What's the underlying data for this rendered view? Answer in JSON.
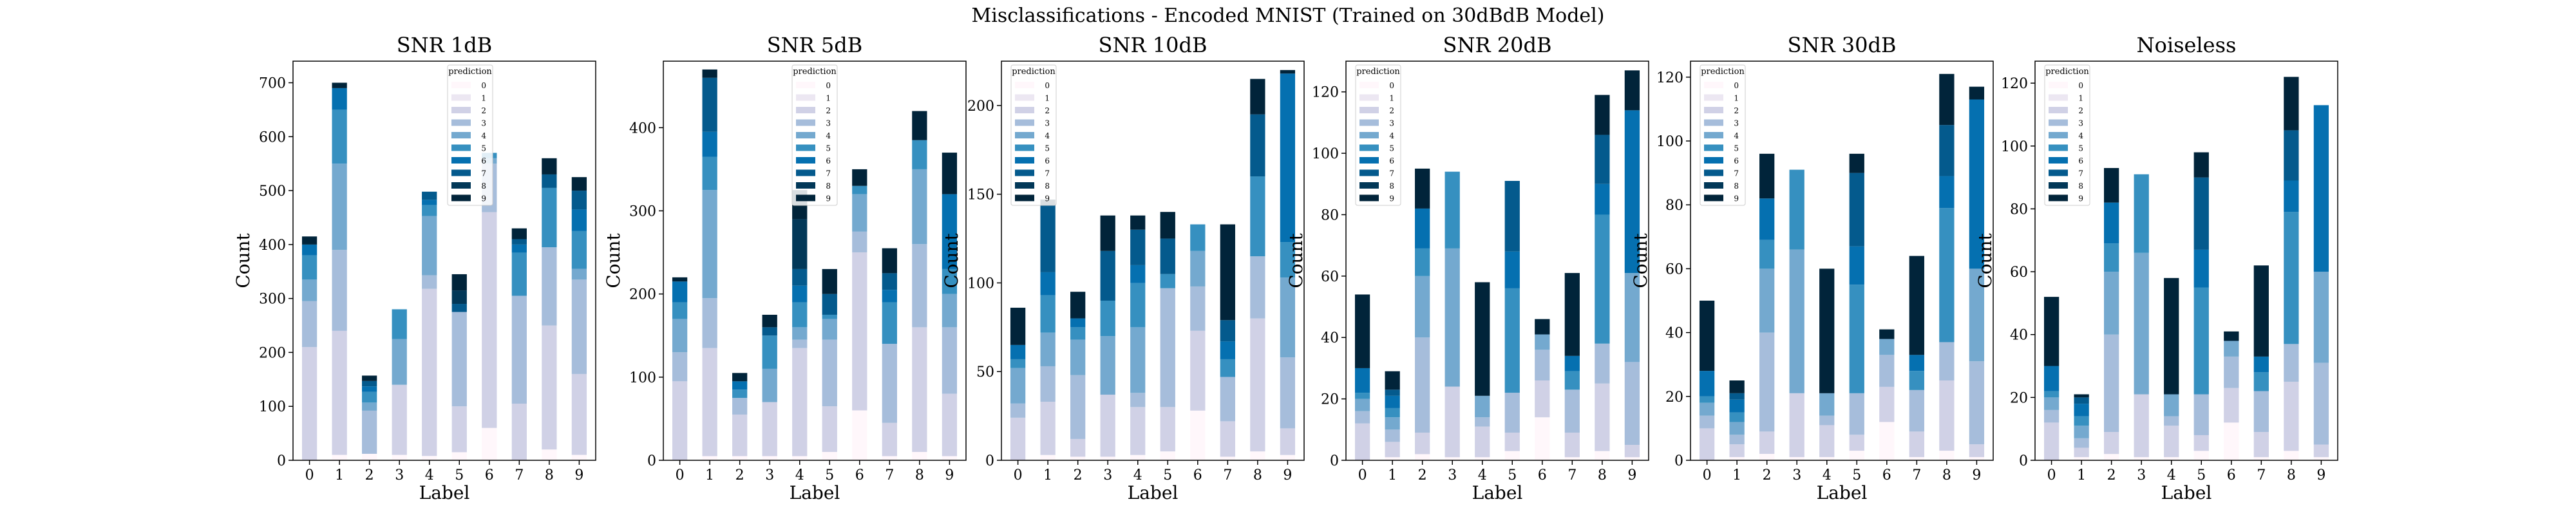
{
  "title": "Misclassifications - Encoded MNIST (Trained on 30dBdB Model)",
  "colors": [
    "#fff7fb",
    "#ece7f2",
    "#d0d1e6",
    "#a6bddb",
    "#74a9cf",
    "#3690c0",
    "#0570b0",
    "#045a8d",
    "#023858",
    "#01243a"
  ],
  "chart_data": [
    {
      "type": "bar",
      "stacked": true,
      "title": "SNR 1dB",
      "xlabel": "Label",
      "ylabel": "Count",
      "categories": [
        "0",
        "1",
        "2",
        "3",
        "4",
        "5",
        "6",
        "7",
        "8",
        "9"
      ],
      "ylim": [
        0,
        740
      ],
      "yticks": [
        0,
        100,
        200,
        300,
        400,
        500,
        600,
        700
      ],
      "legend": {
        "title": "prediction",
        "entries": [
          "0",
          "1",
          "2",
          "3",
          "4",
          "5",
          "6",
          "7",
          "8",
          "9"
        ],
        "position": "top-center"
      },
      "series": [
        {
          "name": "0",
          "values": [
            0,
            10,
            12,
            10,
            8,
            15,
            60,
            0,
            20,
            10
          ]
        },
        {
          "name": "1",
          "values": [
            0,
            0,
            0,
            0,
            0,
            0,
            0,
            0,
            0,
            0
          ]
        },
        {
          "name": "2",
          "values": [
            210,
            230,
            0,
            130,
            310,
            85,
            400,
            105,
            230,
            150
          ]
        },
        {
          "name": "3",
          "values": [
            85,
            150,
            80,
            0,
            25,
            175,
            90,
            200,
            145,
            175
          ]
        },
        {
          "name": "4",
          "values": [
            40,
            160,
            15,
            85,
            110,
            0,
            10,
            0,
            0,
            20
          ]
        },
        {
          "name": "5",
          "values": [
            45,
            100,
            20,
            55,
            20,
            0,
            10,
            80,
            110,
            70
          ]
        },
        {
          "name": "6",
          "values": [
            20,
            40,
            10,
            0,
            10,
            0,
            0,
            15,
            0,
            40
          ]
        },
        {
          "name": "7",
          "values": [
            0,
            0,
            10,
            0,
            15,
            15,
            0,
            10,
            25,
            35
          ]
        },
        {
          "name": "8",
          "values": [
            0,
            0,
            0,
            0,
            0,
            25,
            0,
            0,
            0,
            0
          ]
        },
        {
          "name": "9",
          "values": [
            15,
            10,
            10,
            0,
            0,
            30,
            0,
            20,
            30,
            25
          ]
        }
      ]
    },
    {
      "type": "bar",
      "stacked": true,
      "title": "SNR 5dB",
      "xlabel": "Label",
      "ylabel": "Count",
      "categories": [
        "0",
        "1",
        "2",
        "3",
        "4",
        "5",
        "6",
        "7",
        "8",
        "9"
      ],
      "ylim": [
        0,
        480
      ],
      "yticks": [
        0,
        100,
        200,
        300,
        400
      ],
      "legend": {
        "title": "prediction",
        "entries": [
          "0",
          "1",
          "2",
          "3",
          "4",
          "5",
          "6",
          "7",
          "8",
          "9"
        ],
        "position": "top-center"
      },
      "series": [
        {
          "name": "0",
          "values": [
            0,
            5,
            5,
            5,
            5,
            10,
            60,
            5,
            10,
            5
          ]
        },
        {
          "name": "1",
          "values": [
            0,
            0,
            0,
            0,
            0,
            0,
            0,
            0,
            0,
            0
          ]
        },
        {
          "name": "2",
          "values": [
            95,
            130,
            50,
            65,
            130,
            55,
            190,
            40,
            150,
            75
          ]
        },
        {
          "name": "3",
          "values": [
            35,
            60,
            20,
            0,
            10,
            80,
            25,
            95,
            100,
            80
          ]
        },
        {
          "name": "4",
          "values": [
            40,
            130,
            0,
            40,
            15,
            25,
            45,
            0,
            90,
            40
          ]
        },
        {
          "name": "5",
          "values": [
            20,
            40,
            10,
            40,
            30,
            5,
            10,
            50,
            35,
            30
          ]
        },
        {
          "name": "6",
          "values": [
            25,
            30,
            10,
            0,
            20,
            0,
            0,
            15,
            0,
            90
          ]
        },
        {
          "name": "7",
          "values": [
            0,
            65,
            0,
            10,
            20,
            25,
            0,
            20,
            0,
            0
          ]
        },
        {
          "name": "8",
          "values": [
            0,
            0,
            0,
            0,
            60,
            0,
            0,
            0,
            0,
            0
          ]
        },
        {
          "name": "9",
          "values": [
            5,
            10,
            10,
            15,
            35,
            30,
            20,
            30,
            35,
            50
          ]
        }
      ]
    },
    {
      "type": "bar",
      "stacked": true,
      "title": "SNR 10dB",
      "xlabel": "Label",
      "ylabel": "Count",
      "categories": [
        "0",
        "1",
        "2",
        "3",
        "4",
        "5",
        "6",
        "7",
        "8",
        "9"
      ],
      "ylim": [
        0,
        225
      ],
      "yticks": [
        0,
        50,
        100,
        150,
        200
      ],
      "legend": {
        "title": "prediction",
        "entries": [
          "0",
          "1",
          "2",
          "3",
          "4",
          "5",
          "6",
          "7",
          "8",
          "9"
        ],
        "position": "top-left"
      },
      "series": [
        {
          "name": "0",
          "values": [
            0,
            3,
            2,
            2,
            3,
            5,
            28,
            2,
            5,
            3
          ]
        },
        {
          "name": "1",
          "values": [
            0,
            0,
            0,
            0,
            0,
            0,
            0,
            0,
            0,
            0
          ]
        },
        {
          "name": "2",
          "values": [
            24,
            30,
            10,
            35,
            27,
            25,
            45,
            20,
            75,
            15
          ]
        },
        {
          "name": "3",
          "values": [
            8,
            20,
            36,
            0,
            8,
            67,
            25,
            25,
            35,
            40
          ]
        },
        {
          "name": "4",
          "values": [
            20,
            19,
            20,
            33,
            37,
            0,
            20,
            0,
            0,
            45
          ]
        },
        {
          "name": "5",
          "values": [
            5,
            21,
            7,
            20,
            25,
            8,
            15,
            10,
            45,
            20
          ]
        },
        {
          "name": "6",
          "values": [
            8,
            13,
            5,
            0,
            10,
            0,
            0,
            10,
            0,
            95
          ]
        },
        {
          "name": "7",
          "values": [
            0,
            38,
            0,
            28,
            20,
            20,
            0,
            12,
            35,
            0
          ]
        },
        {
          "name": "8",
          "values": [
            0,
            0,
            0,
            0,
            0,
            0,
            0,
            0,
            0,
            0
          ]
        },
        {
          "name": "9",
          "values": [
            21,
            3,
            15,
            20,
            8,
            15,
            0,
            54,
            20,
            2
          ]
        }
      ]
    },
    {
      "type": "bar",
      "stacked": true,
      "title": "SNR 20dB",
      "xlabel": "Label",
      "ylabel": "Count",
      "categories": [
        "0",
        "1",
        "2",
        "3",
        "4",
        "5",
        "6",
        "7",
        "8",
        "9"
      ],
      "ylim": [
        0,
        130
      ],
      "yticks": [
        0,
        20,
        40,
        60,
        80,
        100,
        120
      ],
      "legend": {
        "title": "prediction",
        "entries": [
          "0",
          "1",
          "2",
          "3",
          "4",
          "5",
          "6",
          "7",
          "8",
          "9"
        ],
        "position": "top-left"
      },
      "series": [
        {
          "name": "0",
          "values": [
            0,
            1,
            2,
            1,
            1,
            3,
            14,
            1,
            3,
            1
          ]
        },
        {
          "name": "1",
          "values": [
            0,
            0,
            0,
            0,
            0,
            0,
            0,
            0,
            0,
            0
          ]
        },
        {
          "name": "2",
          "values": [
            12,
            5,
            7,
            23,
            10,
            6,
            12,
            8,
            22,
            4
          ]
        },
        {
          "name": "3",
          "values": [
            4,
            4,
            31,
            0,
            3,
            13,
            10,
            14,
            13,
            27
          ]
        },
        {
          "name": "4",
          "values": [
            4,
            4,
            20,
            45,
            7,
            0,
            5,
            0,
            0,
            29
          ]
        },
        {
          "name": "5",
          "values": [
            2,
            3,
            9,
            25,
            0,
            34,
            0,
            6,
            42,
            0
          ]
        },
        {
          "name": "6",
          "values": [
            8,
            4,
            13,
            0,
            0,
            12,
            0,
            5,
            10,
            53
          ]
        },
        {
          "name": "7",
          "values": [
            0,
            2,
            0,
            0,
            0,
            23,
            0,
            0,
            16,
            0
          ]
        },
        {
          "name": "8",
          "values": [
            0,
            0,
            0,
            0,
            0,
            0,
            0,
            0,
            0,
            0
          ]
        },
        {
          "name": "9",
          "values": [
            24,
            6,
            13,
            0,
            37,
            0,
            5,
            27,
            13,
            13
          ]
        }
      ]
    },
    {
      "type": "bar",
      "stacked": true,
      "title": "SNR 30dB",
      "xlabel": "Label",
      "ylabel": "Count",
      "categories": [
        "0",
        "1",
        "2",
        "3",
        "4",
        "5",
        "6",
        "7",
        "8",
        "9"
      ],
      "ylim": [
        0,
        125
      ],
      "yticks": [
        0,
        20,
        40,
        60,
        80,
        100,
        120
      ],
      "legend": {
        "title": "prediction",
        "entries": [
          "0",
          "1",
          "2",
          "3",
          "4",
          "5",
          "6",
          "7",
          "8",
          "9"
        ],
        "position": "top-left"
      },
      "series": [
        {
          "name": "0",
          "values": [
            0,
            1,
            2,
            1,
            1,
            3,
            12,
            1,
            3,
            1
          ]
        },
        {
          "name": "1",
          "values": [
            0,
            0,
            0,
            0,
            0,
            0,
            0,
            0,
            0,
            0
          ]
        },
        {
          "name": "2",
          "values": [
            10,
            4,
            7,
            20,
            10,
            5,
            11,
            8,
            22,
            4
          ]
        },
        {
          "name": "3",
          "values": [
            4,
            3,
            31,
            0,
            3,
            13,
            10,
            13,
            12,
            26
          ]
        },
        {
          "name": "4",
          "values": [
            4,
            4,
            20,
            45,
            7,
            0,
            5,
            0,
            0,
            29
          ]
        },
        {
          "name": "5",
          "values": [
            2,
            3,
            9,
            25,
            0,
            34,
            0,
            6,
            42,
            0
          ]
        },
        {
          "name": "6",
          "values": [
            8,
            4,
            13,
            0,
            0,
            12,
            0,
            5,
            10,
            53
          ]
        },
        {
          "name": "7",
          "values": [
            0,
            2,
            0,
            0,
            0,
            23,
            0,
            0,
            16,
            0
          ]
        },
        {
          "name": "8",
          "values": [
            0,
            0,
            0,
            0,
            0,
            0,
            0,
            0,
            0,
            0
          ]
        },
        {
          "name": "9",
          "values": [
            22,
            4,
            14,
            0,
            39,
            6,
            3,
            31,
            16,
            4
          ]
        }
      ]
    },
    {
      "type": "bar",
      "stacked": true,
      "title": "Noiseless",
      "xlabel": "Label",
      "ylabel": "Count",
      "categories": [
        "0",
        "1",
        "2",
        "3",
        "4",
        "5",
        "6",
        "7",
        "8",
        "9"
      ],
      "ylim": [
        0,
        127
      ],
      "yticks": [
        0,
        20,
        40,
        60,
        80,
        100,
        120
      ],
      "legend": {
        "title": "prediction",
        "entries": [
          "0",
          "1",
          "2",
          "3",
          "4",
          "5",
          "6",
          "7",
          "8",
          "9"
        ],
        "position": "top-left"
      },
      "series": [
        {
          "name": "0",
          "values": [
            0,
            1,
            2,
            1,
            1,
            3,
            12,
            1,
            3,
            1
          ]
        },
        {
          "name": "1",
          "values": [
            0,
            0,
            0,
            0,
            0,
            0,
            0,
            0,
            0,
            0
          ]
        },
        {
          "name": "2",
          "values": [
            12,
            3,
            7,
            20,
            10,
            5,
            11,
            8,
            22,
            4
          ]
        },
        {
          "name": "3",
          "values": [
            4,
            3,
            31,
            0,
            3,
            13,
            10,
            13,
            12,
            26
          ]
        },
        {
          "name": "4",
          "values": [
            4,
            4,
            20,
            45,
            7,
            0,
            5,
            0,
            0,
            29
          ]
        },
        {
          "name": "5",
          "values": [
            2,
            3,
            9,
            25,
            0,
            34,
            0,
            6,
            42,
            0
          ]
        },
        {
          "name": "6",
          "values": [
            8,
            4,
            13,
            0,
            0,
            12,
            0,
            5,
            10,
            53
          ]
        },
        {
          "name": "7",
          "values": [
            0,
            2,
            0,
            0,
            0,
            23,
            0,
            0,
            16,
            0
          ]
        },
        {
          "name": "8",
          "values": [
            0,
            0,
            0,
            0,
            0,
            0,
            0,
            0,
            0,
            0
          ]
        },
        {
          "name": "9",
          "values": [
            22,
            1,
            11,
            0,
            37,
            8,
            3,
            29,
            17,
            0
          ]
        }
      ]
    }
  ]
}
